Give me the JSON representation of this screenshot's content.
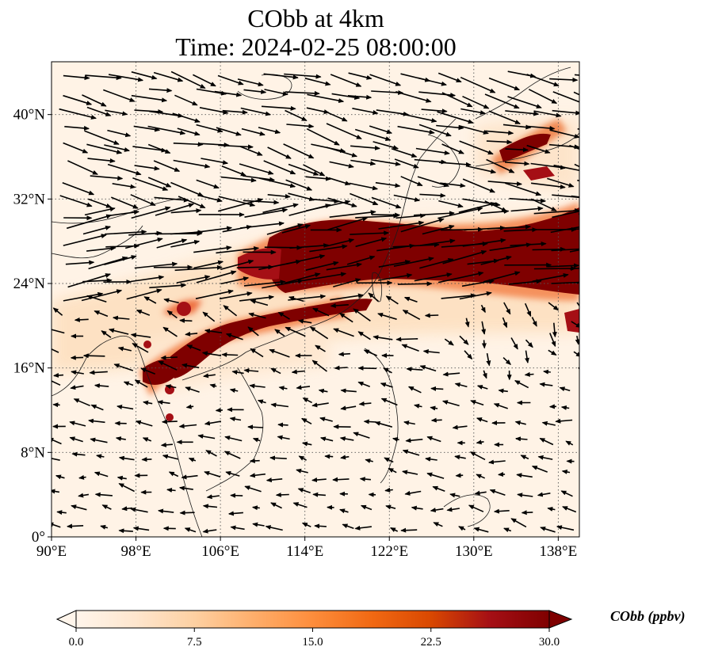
{
  "title": {
    "line1": "CObb at 4km",
    "line2": "Time: 2024-02-25 08:00:00"
  },
  "map": {
    "extent_lon": [
      90,
      140
    ],
    "extent_lat": [
      0,
      45
    ],
    "x_ticks": [
      "90°E",
      "98°E",
      "106°E",
      "114°E",
      "122°E",
      "130°E",
      "138°E"
    ],
    "x_tick_values": [
      90,
      98,
      106,
      114,
      122,
      130,
      138
    ],
    "y_ticks": [
      "0°",
      "8°N",
      "16°N",
      "24°N",
      "32°N",
      "40°N"
    ],
    "y_tick_values": [
      0,
      8,
      16,
      24,
      32,
      40
    ],
    "gridlines": true,
    "plume_color": "#7f0000",
    "background_color": "#fff5eb"
  },
  "colorbar": {
    "label": "CObb (ppbv)",
    "ticks": [
      "0.0",
      "7.5",
      "15.0",
      "22.5",
      "30.0"
    ],
    "tick_values": [
      0,
      7.5,
      15,
      22.5,
      30
    ],
    "range": [
      0,
      30
    ],
    "colors": [
      "#fff5eb",
      "#fee6ce",
      "#fdd0a2",
      "#fdae6b",
      "#fd8d3c",
      "#f16913",
      "#d94801",
      "#a50f15",
      "#7f0000"
    ],
    "extend": "both"
  }
}
